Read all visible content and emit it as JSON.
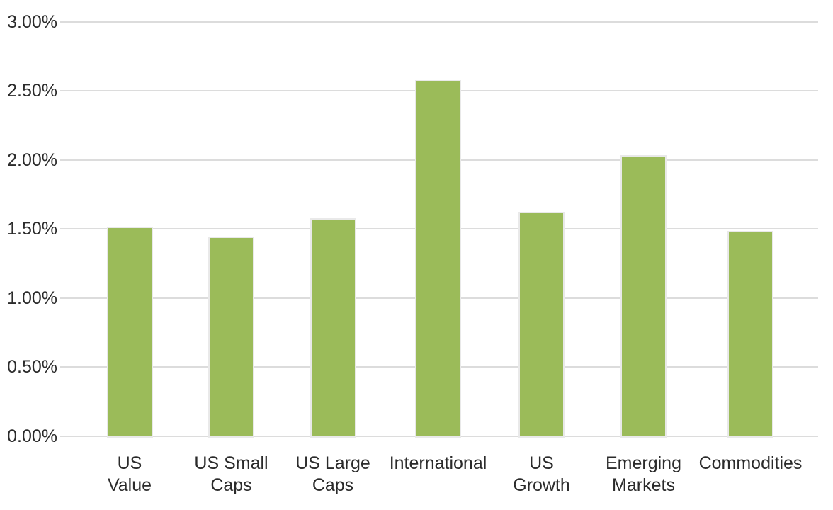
{
  "chart_data": {
    "type": "bar",
    "title": "",
    "xlabel": "",
    "ylabel": "",
    "categories": [
      "US Value",
      "US Small Caps",
      "US Large Caps",
      "International",
      "US Growth",
      "Emerging Markets",
      "Commodities"
    ],
    "category_label_lines": [
      [
        "US",
        "Value"
      ],
      [
        "US Small",
        "Caps"
      ],
      [
        "US Large",
        "Caps"
      ],
      [
        "International"
      ],
      [
        "US",
        "Growth"
      ],
      [
        "Emerging",
        "Markets"
      ],
      [
        "Commodities"
      ]
    ],
    "series": [
      {
        "name": "",
        "values": [
          1.51,
          1.44,
          1.57,
          2.57,
          1.62,
          2.03,
          1.48
        ]
      }
    ],
    "values": [
      1.51,
      1.44,
      1.57,
      2.57,
      1.62,
      2.03,
      1.48
    ],
    "value_suffix": "%",
    "ylim": [
      0,
      3
    ],
    "ytick_step": 0.5,
    "yticks": [
      {
        "value": 0.0,
        "label": "0.00%"
      },
      {
        "value": 0.5,
        "label": "0.50%"
      },
      {
        "value": 1.0,
        "label": "1.00%"
      },
      {
        "value": 1.5,
        "label": "1.50%"
      },
      {
        "value": 2.0,
        "label": "2.00%"
      },
      {
        "value": 2.5,
        "label": "2.50%"
      },
      {
        "value": 3.0,
        "label": "3.00%"
      }
    ],
    "grid": true,
    "legend_position": "none",
    "colors": {
      "bar": "#9BBB59",
      "bar_outline": "#E9E9E9",
      "gridline": "#DCDCDC",
      "text": "#2B2B2B",
      "background": "#FFFFFF"
    }
  }
}
